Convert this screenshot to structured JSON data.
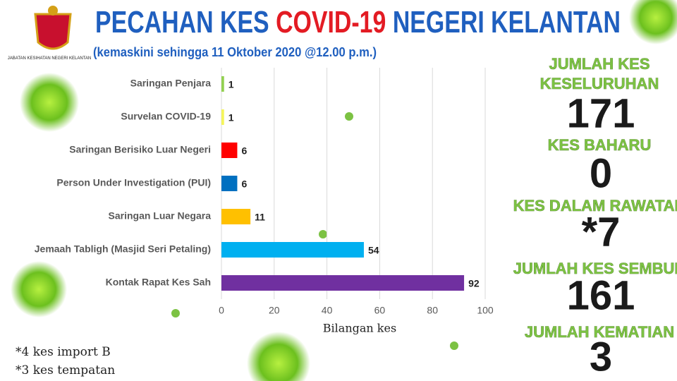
{
  "header": {
    "title_parts": [
      "PECAHAN KES",
      "COVID-19",
      "NEGERI KELANTAN"
    ],
    "subtitle": "(kemaskini sehingga 11 Oktober 2020 @12.00 p.m.)",
    "logo_caption": "JABATAN KESIHATAN NEGERI KELANTAN"
  },
  "chart_data": {
    "type": "bar",
    "orientation": "horizontal",
    "categories": [
      "Saringan Penjara",
      "Survelan COVID-19",
      "Saringan Berisiko Luar Negeri",
      "Person Under Investigation (PUI)",
      "Saringan Luar Negara",
      "Jemaah Tabligh (Masjid Seri Petaling)",
      "Kontak Rapat Kes Sah"
    ],
    "values": [
      1,
      1,
      6,
      6,
      11,
      54,
      92
    ],
    "colors": [
      "#92d050",
      "#f5f55a",
      "#ff0000",
      "#0070c0",
      "#ffc000",
      "#00b0f0",
      "#7030a0"
    ],
    "xlim": [
      0,
      100
    ],
    "xticks": [
      0,
      20,
      40,
      60,
      80,
      100
    ],
    "x_label": "Bilangan kes",
    "grid": true
  },
  "stats": [
    {
      "label": [
        "JUMLAH KES",
        "KESELURUHAN"
      ],
      "value": 171
    },
    {
      "label": [
        "KES BAHARU"
      ],
      "value": 0
    },
    {
      "label": [
        "KES DALAM RAWATAN"
      ],
      "value": "*7"
    },
    {
      "label": [
        "JUMLAH KES SEMBUH"
      ],
      "value": 161
    },
    {
      "label": [
        "JUMLAH KEMATIAN"
      ],
      "value": 3
    }
  ],
  "notes": [
    "*4 kes import B",
    "*3 kes tempatan"
  ]
}
